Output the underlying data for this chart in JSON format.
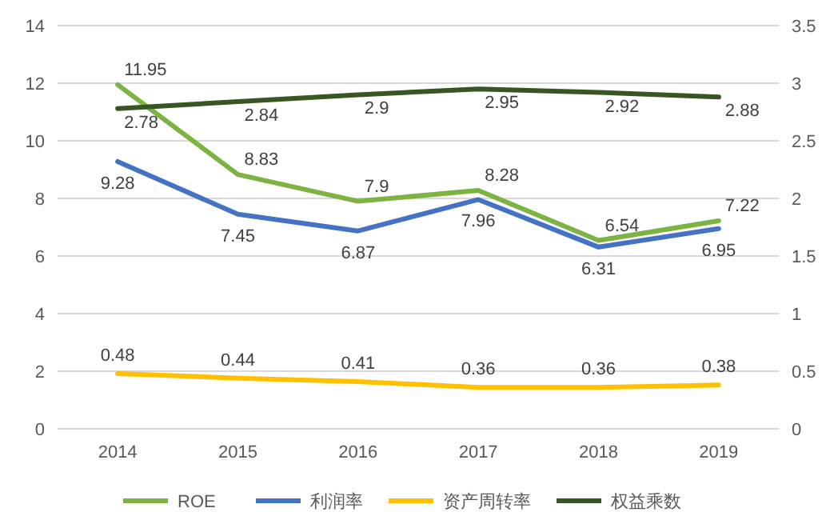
{
  "chart_data": {
    "type": "line",
    "categories": [
      "2014",
      "2015",
      "2016",
      "2017",
      "2018",
      "2019"
    ],
    "series": [
      {
        "name": "ROE",
        "color": "#7cb342",
        "values": [
          11.95,
          8.83,
          7.9,
          8.28,
          6.54,
          7.22
        ]
      },
      {
        "name": "利润率",
        "color": "#4472c4",
        "values": [
          9.28,
          7.45,
          6.87,
          7.96,
          6.31,
          6.95
        ]
      },
      {
        "name": "资产周转率",
        "color": "#ffc000",
        "values": [
          0.48,
          0.44,
          0.41,
          0.36,
          0.36,
          0.38
        ],
        "axis": "y2"
      },
      {
        "name": "权益乘数",
        "color": "#375623",
        "values": [
          2.78,
          2.84,
          2.9,
          2.95,
          2.92,
          2.88
        ],
        "axis": "y2"
      }
    ],
    "ylim": [
      0,
      14
    ],
    "yticks": [
      0,
      2,
      4,
      6,
      8,
      10,
      12,
      14
    ],
    "y2lim": [
      0,
      3.5
    ],
    "y2ticks": [
      0,
      0.5,
      1,
      1.5,
      2,
      2.5,
      3,
      3.5
    ],
    "grid": "y",
    "legend": "bottom",
    "data_labels": true,
    "marker": "none",
    "line_style": "solid"
  }
}
